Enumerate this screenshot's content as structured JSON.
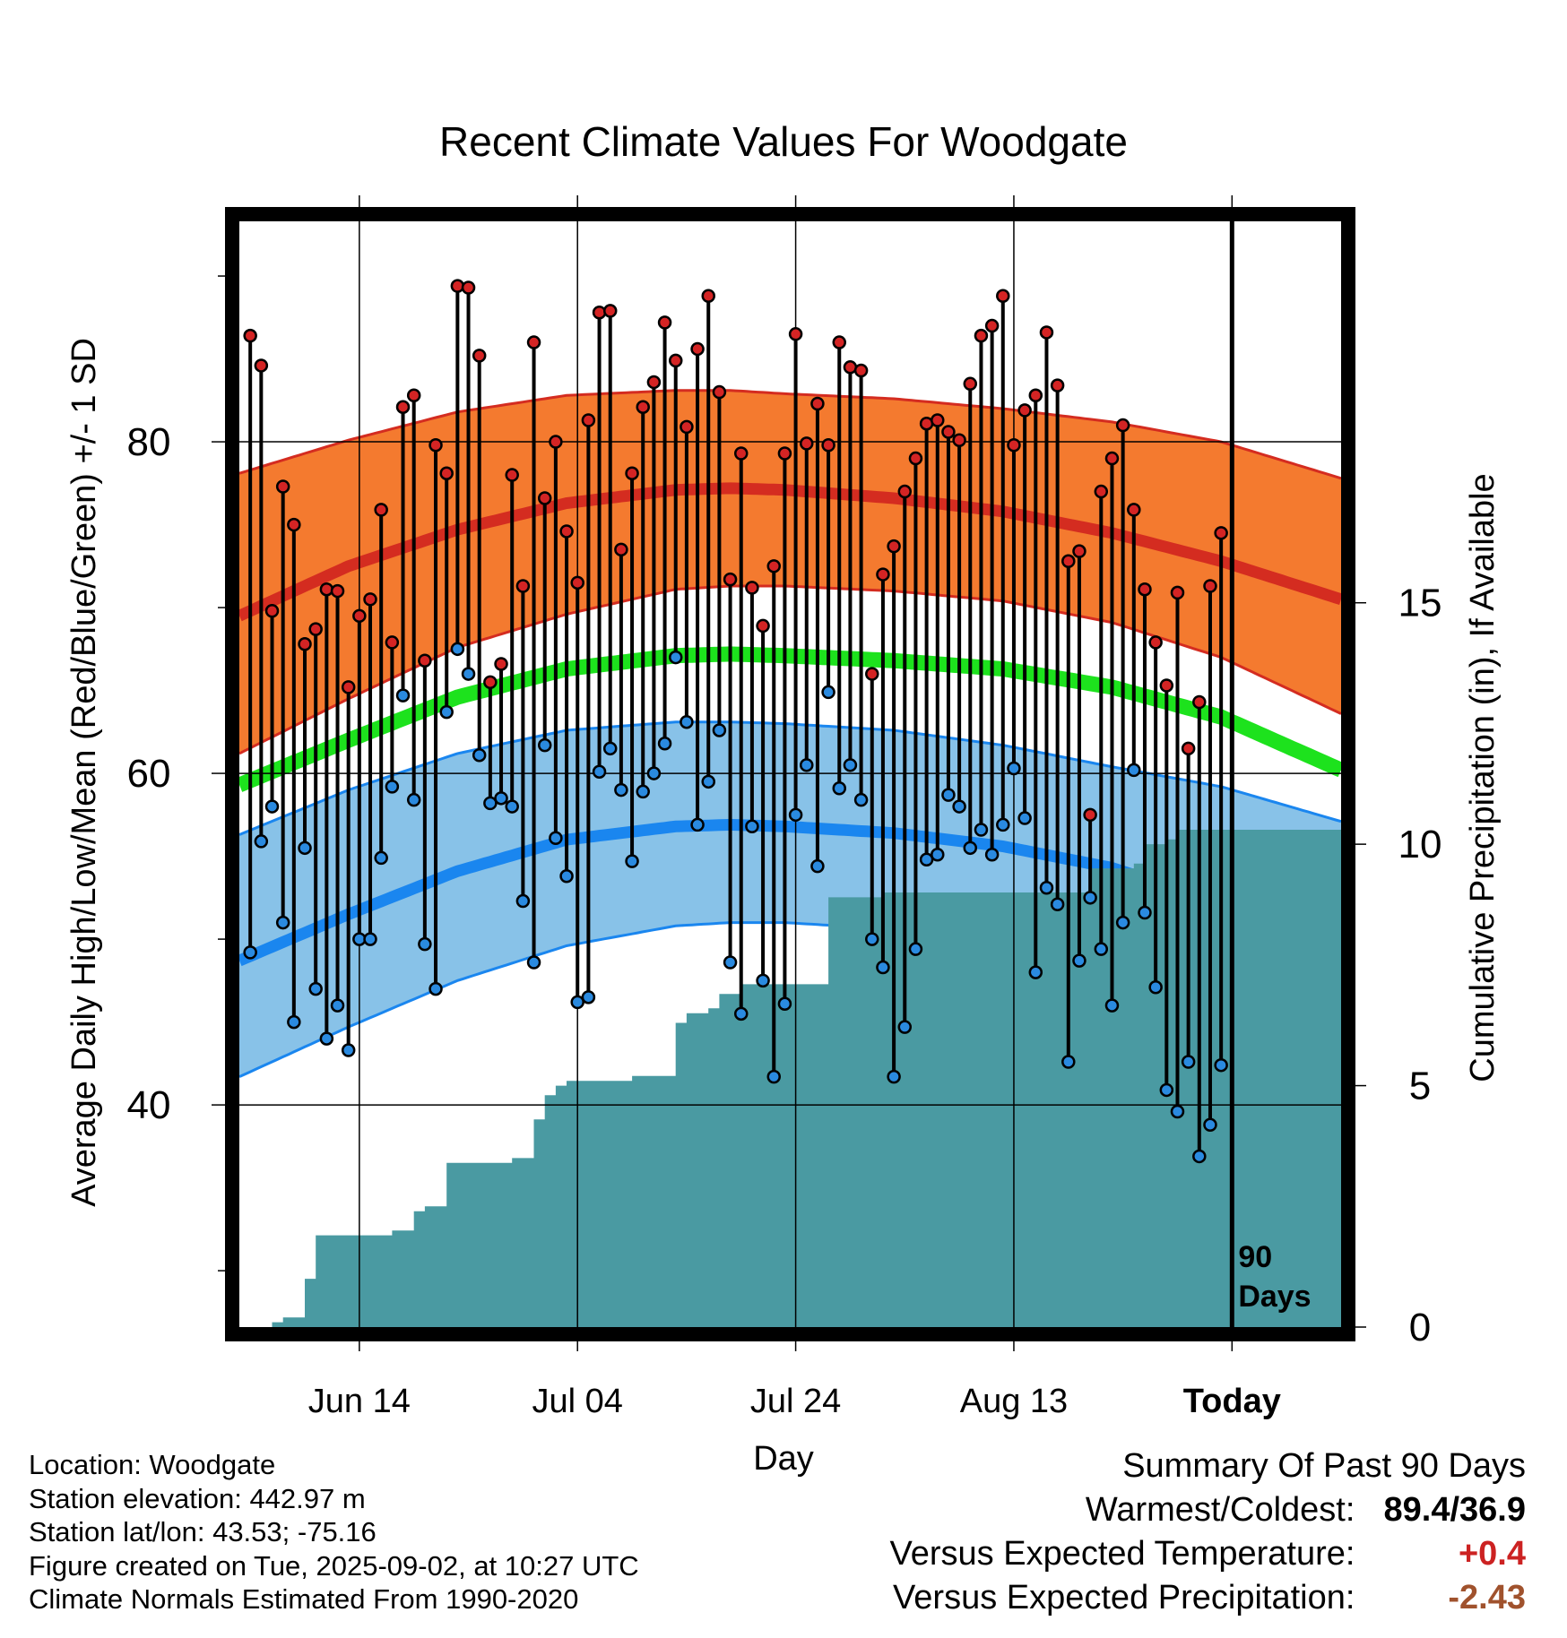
{
  "chart_data": {
    "type": "line",
    "title": "Recent Climate Values For Woodgate",
    "ylabel": "Average Daily High/Low/Mean (Red/Blue/Green) +/- 1 SD",
    "y2label": "Cumulative Precipitation (in), If Available",
    "xlabel": "Day",
    "ylim": [
      26.6,
      93.3
    ],
    "y_ticks": [
      80,
      60,
      40
    ],
    "y2lim": [
      0,
      22.9
    ],
    "y2_ticks": [
      15,
      10,
      5,
      0
    ],
    "x_tick_labels": [
      "Jun 14",
      "Jul 04",
      "Jul 24",
      "Aug 13",
      "Today"
    ],
    "x_tick_days": [
      11,
      31,
      51,
      71,
      91
    ],
    "xlim": [
      0,
      101
    ],
    "today_marker_label": [
      "90",
      "Days"
    ],
    "normals": {
      "days": [
        0,
        10,
        20,
        30,
        40,
        45,
        50,
        60,
        70,
        80,
        90,
        101
      ],
      "high_mean": [
        69.5,
        72.5,
        74.7,
        76.3,
        77.1,
        77.2,
        77.1,
        76.6,
        75.8,
        74.5,
        72.8,
        70.5
      ],
      "high_plus_sd": [
        78.1,
        80.1,
        81.8,
        82.8,
        83.1,
        83.1,
        82.9,
        82.6,
        82.0,
        81.2,
        80.0,
        77.8
      ],
      "high_minus_sd": [
        61.2,
        64.5,
        67.6,
        69.6,
        71.1,
        71.3,
        71.3,
        71.0,
        70.4,
        69.1,
        67.0,
        63.6
      ],
      "mean": [
        59.3,
        62.0,
        64.6,
        66.3,
        67.1,
        67.2,
        67.1,
        66.8,
        66.3,
        65.2,
        63.4,
        60.2
      ],
      "low_mean": [
        48.7,
        51.5,
        54.1,
        56.0,
        56.8,
        56.9,
        56.8,
        56.4,
        55.6,
        54.3,
        52.2,
        49.5
      ],
      "low_plus_sd": [
        56.3,
        59.0,
        61.2,
        62.6,
        63.1,
        63.1,
        63.0,
        62.6,
        61.7,
        60.4,
        59.2,
        57.1
      ],
      "low_minus_sd": [
        41.7,
        44.7,
        47.5,
        49.6,
        50.8,
        51.0,
        51.0,
        50.6,
        49.4,
        47.1,
        45.0,
        42.3
      ]
    },
    "observations": {
      "days": [
        1,
        2,
        3,
        4,
        5,
        6,
        7,
        8,
        9,
        10,
        11,
        12,
        13,
        14,
        15,
        16,
        17,
        18,
        19,
        20,
        21,
        22,
        23,
        24,
        25,
        26,
        27,
        28,
        29,
        30,
        31,
        32,
        33,
        34,
        35,
        36,
        37,
        38,
        39,
        40,
        41,
        42,
        43,
        44,
        45,
        46,
        47,
        48,
        49,
        50,
        51,
        52,
        53,
        54,
        55,
        56,
        57,
        58,
        59,
        60,
        61,
        62,
        63,
        64,
        65,
        66,
        67,
        68,
        69,
        70,
        71,
        72,
        73,
        74,
        75,
        76,
        77,
        78,
        79,
        80,
        81,
        82,
        83,
        84,
        85,
        86,
        87,
        88,
        89,
        90
      ],
      "high": [
        86.4,
        84.6,
        69.8,
        77.3,
        75.0,
        67.8,
        68.7,
        71.1,
        71.0,
        65.2,
        69.5,
        70.5,
        75.9,
        67.9,
        82.1,
        82.8,
        66.8,
        79.8,
        78.1,
        89.4,
        89.3,
        85.2,
        65.5,
        66.6,
        78.0,
        71.3,
        86.0,
        76.6,
        80.0,
        74.6,
        71.5,
        81.3,
        87.8,
        87.9,
        73.5,
        78.1,
        82.1,
        83.6,
        87.2,
        84.9,
        80.9,
        85.6,
        88.8,
        83.0,
        71.7,
        79.3,
        71.2,
        68.9,
        72.5,
        79.3,
        86.5,
        79.9,
        82.3,
        79.8,
        86.0,
        84.5,
        84.3,
        66.0,
        72.0,
        73.7,
        77.0,
        79.0,
        81.1,
        81.3,
        80.6,
        80.1,
        83.5,
        86.4,
        87.0,
        88.8,
        79.8,
        81.9,
        82.8,
        86.6,
        83.4,
        72.8,
        73.4,
        57.5,
        77.0,
        79.0,
        81.0,
        75.9,
        71.1,
        67.9,
        65.3,
        70.9,
        61.5,
        64.3,
        71.3,
        74.5
      ],
      "low": [
        49.2,
        55.9,
        58.0,
        51.0,
        45.0,
        55.5,
        47.0,
        44.0,
        46.0,
        43.3,
        50.0,
        50.0,
        54.9,
        59.2,
        64.7,
        58.4,
        49.7,
        47.0,
        63.7,
        67.5,
        66.0,
        61.1,
        58.2,
        58.5,
        58.0,
        52.3,
        48.6,
        61.7,
        56.1,
        53.8,
        46.2,
        46.5,
        60.1,
        61.5,
        59.0,
        54.7,
        58.9,
        60.0,
        61.8,
        67.0,
        63.1,
        56.9,
        59.5,
        62.6,
        48.6,
        45.5,
        56.8,
        47.5,
        41.7,
        46.1,
        57.5,
        60.5,
        54.4,
        64.9,
        59.1,
        60.5,
        58.4,
        50.0,
        48.3,
        41.7,
        44.7,
        49.4,
        54.8,
        55.1,
        58.7,
        58.0,
        55.5,
        56.6,
        55.1,
        56.9,
        60.3,
        57.3,
        48.0,
        53.1,
        52.1,
        42.6,
        48.7,
        52.5,
        49.4,
        46.0,
        51.0,
        60.2,
        51.6,
        47.1,
        40.9,
        39.6,
        42.6,
        36.9,
        38.8,
        42.4
      ]
    },
    "precipitation_cumulative": {
      "days": [
        1,
        2,
        3,
        4,
        5,
        6,
        7,
        8,
        9,
        10,
        11,
        12,
        13,
        14,
        15,
        16,
        17,
        18,
        19,
        20,
        21,
        22,
        23,
        24,
        25,
        26,
        27,
        28,
        29,
        30,
        31,
        32,
        33,
        34,
        35,
        36,
        37,
        38,
        39,
        40,
        41,
        42,
        43,
        44,
        45,
        46,
        47,
        48,
        49,
        50,
        51,
        52,
        53,
        54,
        55,
        56,
        57,
        58,
        59,
        60,
        61,
        62,
        63,
        64,
        65,
        66,
        67,
        68,
        69,
        70,
        71,
        72,
        73,
        74,
        75,
        76,
        77,
        78,
        79,
        80,
        81,
        82,
        83,
        84,
        85,
        86,
        87,
        88,
        89,
        90,
        101
      ],
      "values": [
        0.0,
        0.0,
        0.1,
        0.2,
        0.2,
        1.0,
        1.9,
        1.9,
        1.9,
        1.9,
        1.9,
        1.9,
        1.9,
        2.0,
        2.0,
        2.4,
        2.5,
        2.5,
        3.4,
        3.4,
        3.4,
        3.4,
        3.4,
        3.4,
        3.5,
        3.5,
        4.3,
        4.8,
        5.0,
        5.1,
        5.1,
        5.1,
        5.1,
        5.1,
        5.1,
        5.2,
        5.2,
        5.2,
        5.2,
        6.3,
        6.5,
        6.5,
        6.6,
        6.9,
        6.9,
        7.1,
        7.1,
        7.1,
        7.1,
        7.1,
        7.1,
        7.1,
        7.1,
        8.9,
        8.9,
        8.9,
        8.9,
        8.9,
        9.0,
        9.0,
        9.0,
        9.0,
        9.0,
        9.0,
        9.0,
        9.0,
        9.0,
        9.0,
        9.0,
        9.0,
        9.0,
        9.0,
        9.0,
        9.0,
        9.0,
        9.0,
        9.0,
        9.5,
        9.5,
        9.5,
        9.5,
        9.6,
        10.0,
        10.0,
        10.1,
        10.3,
        10.3,
        10.3,
        10.3,
        10.3,
        10.3
      ]
    },
    "colors": {
      "high_band": "#f47a2f",
      "high_line": "#d42c20",
      "low_band": "#88c2e8",
      "low_line": "#1a86ef",
      "mean_line": "#1de21d",
      "precip_fill": "#4a9aa2",
      "high_marker": "#d42424",
      "low_marker": "#2a8ae0"
    },
    "grid": true
  },
  "footer": {
    "location": "Location: Woodgate",
    "elevation": "Station elevation: 442.97 m",
    "latlon": "Station lat/lon: 43.53; -75.16",
    "created": "Figure created on Tue, 2025-09-02, at 10:27 UTC",
    "normals": "Climate Normals Estimated From 1990-2020"
  },
  "summary": {
    "title": "Summary Of Past 90 Days",
    "warmest_coldest_label": "Warmest/Coldest:",
    "warmest_coldest_value": "89.4/36.9",
    "temp_label": "Versus Expected Temperature:",
    "temp_value": "+0.4",
    "temp_color": "#cc2222",
    "precip_label": "Versus Expected Precipitation:",
    "precip_value": "-2.43",
    "precip_color": "#a0522d"
  }
}
